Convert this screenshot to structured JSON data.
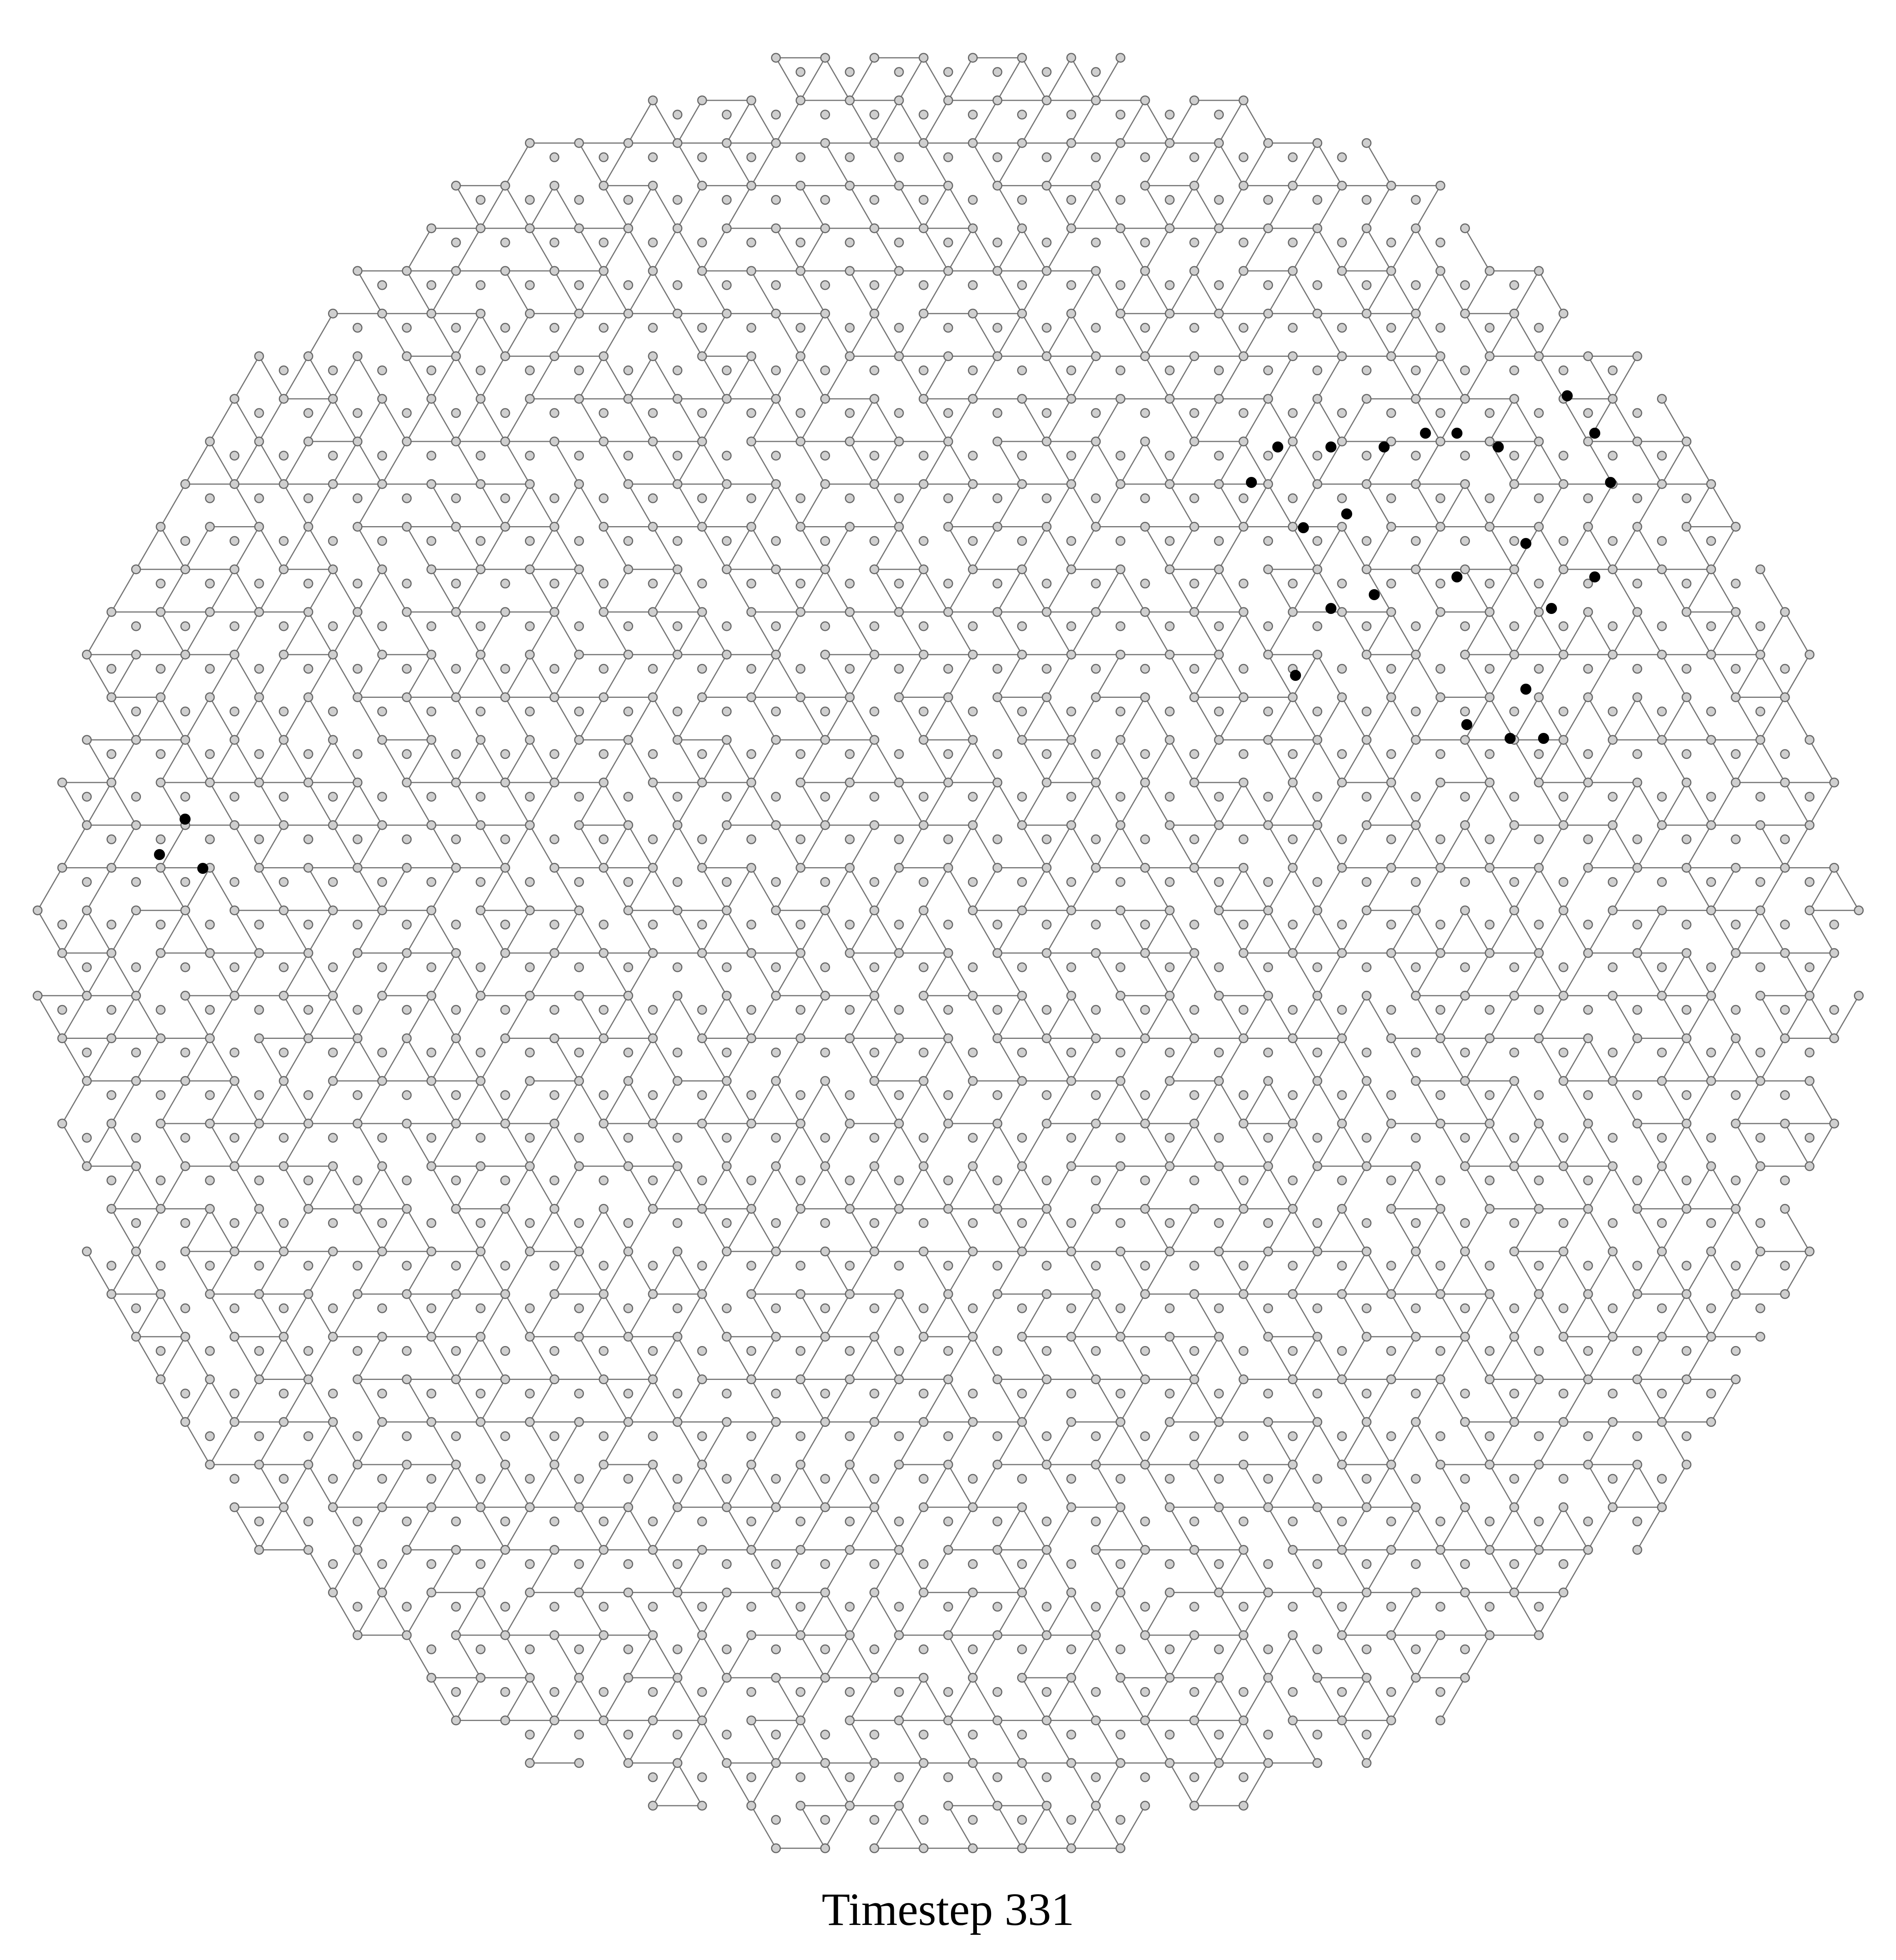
{
  "caption": "Timestep 331",
  "colors": {
    "background": "#ffffff",
    "edge": "#777777",
    "node_fill": "#cfcfcf",
    "node_stroke": "#6a6a6a",
    "active_node": "#000000"
  },
  "legend": {
    "inactive_node": "grey-circle-icon",
    "active_node": "black-dot-icon"
  }
}
